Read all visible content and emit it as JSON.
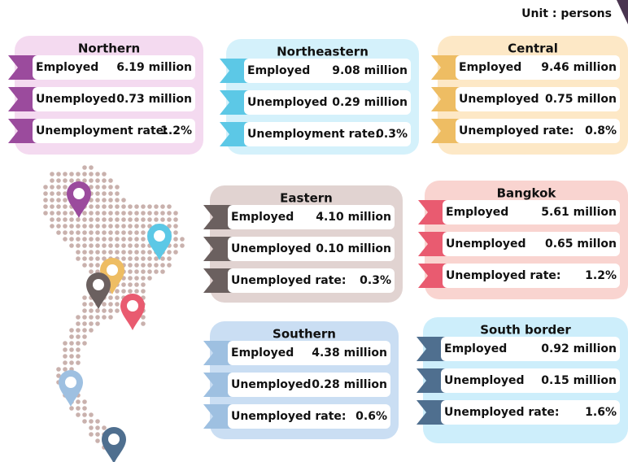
{
  "unit": "Unit : persons",
  "regions": [
    {
      "name": "Northern",
      "color": "#9b4b9d",
      "bg": "#f4daf0",
      "rows": [
        {
          "label": "Employed",
          "value": "6.19 million"
        },
        {
          "label": "Unemployed",
          "value": "0.73 million"
        },
        {
          "label": "Unemployment rate:",
          "value": "1.2%"
        }
      ]
    },
    {
      "name": "Northeastern",
      "color": "#5cc8e6",
      "bg": "#d4f1fb",
      "rows": [
        {
          "label": "Employed",
          "value": "9.08 million"
        },
        {
          "label": "Unemployed",
          "value": "0.29 million"
        },
        {
          "label": "Unemployment rate:",
          "value": "0.3%"
        }
      ]
    },
    {
      "name": "Central",
      "color": "#eebd63",
      "bg": "#fde8c6",
      "rows": [
        {
          "label": "Employed",
          "value": "9.46 million"
        },
        {
          "label": "Unemployed",
          "value": "0.75 millon"
        },
        {
          "label": "Unemployed rate:",
          "value": "0.8%"
        }
      ]
    },
    {
      "name": "Eastern",
      "color": "#6b605f",
      "bg": "#e1d3d1",
      "rows": [
        {
          "label": "Employed",
          "value": "4.10 million"
        },
        {
          "label": "Unemployed",
          "value": "0.10 million"
        },
        {
          "label": "Unemployed rate:",
          "value": "0.3%"
        }
      ]
    },
    {
      "name": "Bangkok",
      "color": "#e95b70",
      "bg": "#f9d4d0",
      "rows": [
        {
          "label": "Employed",
          "value": "5.61 million"
        },
        {
          "label": "Unemployed",
          "value": "0.65 millon"
        },
        {
          "label": "Unemployed rate:",
          "value": "1.2%"
        }
      ]
    },
    {
      "name": "Southern",
      "color": "#9ec0e1",
      "bg": "#cadef3",
      "rows": [
        {
          "label": "Employed",
          "value": "4.38 million"
        },
        {
          "label": "Unemployed",
          "value": "0.28 million"
        },
        {
          "label": "Unemployed rate:",
          "value": "0.6%"
        }
      ]
    },
    {
      "name": "South border",
      "color": "#4f6f8f",
      "bg": "#cdeefb",
      "rows": [
        {
          "label": "Employed",
          "value": "0.92 million"
        },
        {
          "label": "Unemployed",
          "value": "0.15 million"
        },
        {
          "label": "Unemployed rate:",
          "value": "1.6%"
        }
      ]
    }
  ]
}
